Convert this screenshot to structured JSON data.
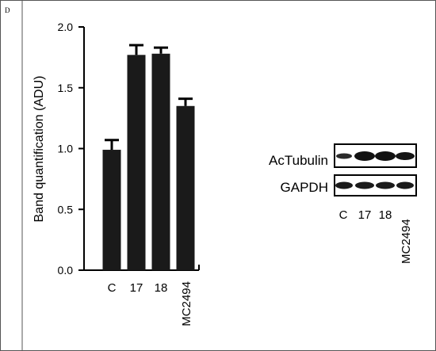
{
  "panel_letter": "D",
  "chart_data": {
    "type": "bar",
    "categories": [
      "C",
      "17",
      "18",
      "MC2494"
    ],
    "values": [
      0.99,
      1.77,
      1.78,
      1.35
    ],
    "errors": [
      0.08,
      0.08,
      0.05,
      0.06
    ],
    "title": "",
    "xlabel": "",
    "ylabel": "Band quantification (ADU)",
    "ylim": [
      0,
      2.0
    ],
    "yticks": [
      "0.0",
      "0.5",
      "1.0",
      "1.5",
      "2.0"
    ],
    "bar_color": "#1a1a1a",
    "grid": false
  },
  "blot": {
    "rows": [
      {
        "label": "AcTubulin"
      },
      {
        "label": "GAPDH"
      }
    ],
    "lanes": [
      "C",
      "17",
      "18",
      "MC2494"
    ]
  }
}
